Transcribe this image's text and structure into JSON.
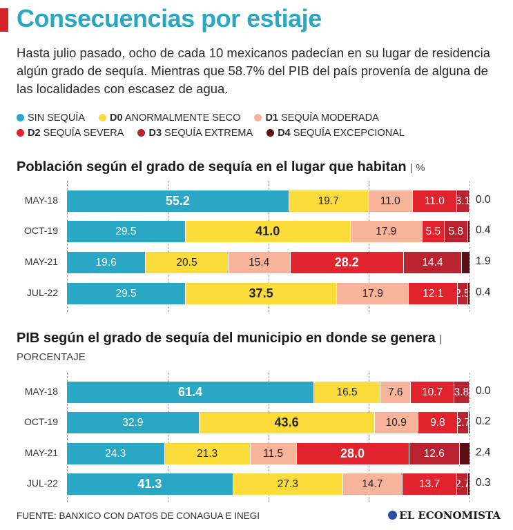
{
  "title": "Consecuencias por estiaje",
  "subtitle": "Hasta julio pasado, ocho de cada 10 mexicanos padecían en su lugar de residencia algún grado de sequía. Mientras que 58.7% del PIB del país provenía de alguna de las localidades con escasez de agua.",
  "legend": [
    {
      "code": "",
      "label": "SIN SEQUÍA",
      "color": "#2aa7c4"
    },
    {
      "code": "D0",
      "label": "ANORMALMENTE SECO",
      "color": "#fbdc3a"
    },
    {
      "code": "D1",
      "label": "SEQUÍA MODERADA",
      "color": "#f8b49b"
    },
    {
      "code": "D2",
      "label": "SEQUÍA SEVERA",
      "color": "#e0232c"
    },
    {
      "code": "D3",
      "label": "SEQUÍA EXTREMA",
      "color": "#b9232f"
    },
    {
      "code": "D4",
      "label": "SEQUÍA EXCEPCIONAL",
      "color": "#5c0f12"
    }
  ],
  "chart_data": [
    {
      "type": "bar",
      "orientation": "horizontal-stacked",
      "title": "Población según el grado de sequía en el lugar que habitan",
      "unit": "| %",
      "categories": [
        "MAY-18",
        "OCT-19",
        "MAY-21",
        "JUL-22"
      ],
      "series": [
        {
          "name": "SIN SEQUÍA",
          "values": [
            55.2,
            29.5,
            19.6,
            29.5
          ]
        },
        {
          "name": "D0 ANORMALMENTE SECO",
          "values": [
            19.7,
            41.0,
            20.5,
            37.5
          ]
        },
        {
          "name": "D1 SEQUÍA MODERADA",
          "values": [
            11.0,
            17.9,
            15.4,
            17.9
          ]
        },
        {
          "name": "D2 SEQUÍA SEVERA",
          "values": [
            11.0,
            5.5,
            28.2,
            12.1
          ]
        },
        {
          "name": "D3 SEQUÍA EXTREMA",
          "values": [
            3.1,
            5.8,
            14.4,
            2.5
          ]
        },
        {
          "name": "D4 SEQUÍA EXCEPCIONAL",
          "values": [
            0.0,
            0.4,
            1.9,
            0.4
          ]
        }
      ],
      "labels": [
        [
          "55.2",
          "19.7",
          "11.0",
          "11.0",
          "3.1",
          "0.0"
        ],
        [
          "29.5",
          "41.0",
          "17.9",
          "5.5",
          "5.8",
          "0.4"
        ],
        [
          "19.6",
          "20.5",
          "15.4",
          "28.2",
          "14.4",
          "1.9"
        ],
        [
          "29.5",
          "37.5",
          "17.9",
          "12.1",
          "2.5",
          "0.4"
        ]
      ],
      "highlight_max": true,
      "xlim": [
        0,
        100
      ]
    },
    {
      "type": "bar",
      "orientation": "horizontal-stacked",
      "title": "PIB según el grado de sequía del municipio en donde se genera",
      "unit": "| PORCENTAJE",
      "categories": [
        "MAY-18",
        "OCT-19",
        "MAY-21",
        "JUL-22"
      ],
      "series": [
        {
          "name": "SIN SEQUÍA",
          "values": [
            61.4,
            32.9,
            24.3,
            41.3
          ]
        },
        {
          "name": "D0 ANORMALMENTE SECO",
          "values": [
            16.5,
            43.6,
            21.3,
            27.3
          ]
        },
        {
          "name": "D1 SEQUÍA MODERADA",
          "values": [
            7.6,
            10.9,
            11.5,
            14.7
          ]
        },
        {
          "name": "D2 SEQUÍA SEVERA",
          "values": [
            10.7,
            9.8,
            28.0,
            13.7
          ]
        },
        {
          "name": "D3 SEQUÍA EXTREMA",
          "values": [
            3.8,
            2.7,
            12.6,
            2.7
          ]
        },
        {
          "name": "D4 SEQUÍA EXCEPCIONAL",
          "values": [
            0.0,
            0.2,
            2.4,
            0.3
          ]
        }
      ],
      "labels": [
        [
          "61.4",
          "16.5",
          "7.6",
          "10.7",
          "3.8",
          "0.0"
        ],
        [
          "32.9",
          "43.6",
          "10.9",
          "9.8",
          "2.7",
          "0.2"
        ],
        [
          "24.3",
          "21.3",
          "11.5",
          "28.0",
          "12.6",
          "2.4"
        ],
        [
          "41.3",
          "27.3",
          "14.7",
          "13.7",
          "2.7",
          "0.3"
        ]
      ],
      "highlight_max": true,
      "xlim": [
        0,
        100
      ]
    }
  ],
  "source": "FUENTE: BANXICO CON DATOS DE CONAGUA E INEGI",
  "logo": "EL ECONOMISTA"
}
